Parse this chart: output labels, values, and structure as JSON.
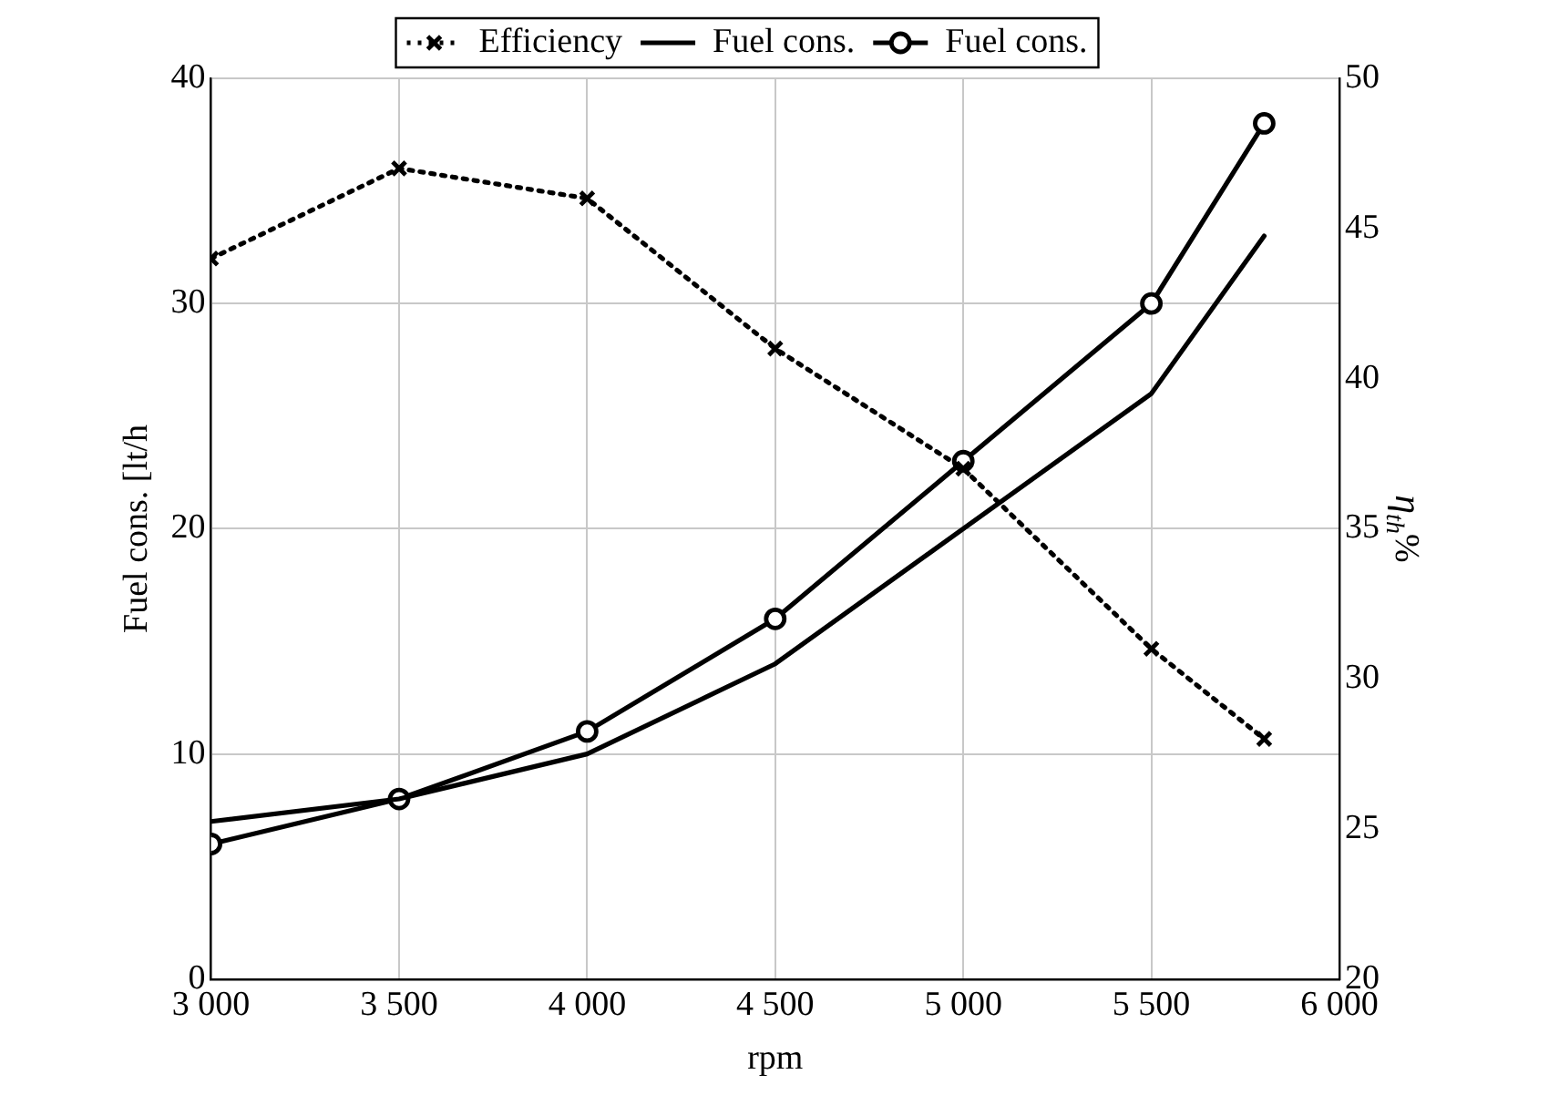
{
  "chart_data": {
    "type": "line",
    "xlabel": "rpm",
    "ylabel": "Fuel cons. [lt/h",
    "y2label": "η$_{th}$%",
    "x": [
      3000,
      3500,
      4000,
      4500,
      5000,
      5500,
      5800
    ],
    "xlim": [
      3000,
      6000
    ],
    "xticks": [
      {
        "value": 3000,
        "label": "3 000"
      },
      {
        "value": 3500,
        "label": "3 500"
      },
      {
        "value": 4000,
        "label": "4 000"
      },
      {
        "value": 4500,
        "label": "4 500"
      },
      {
        "value": 5000,
        "label": "5 000"
      },
      {
        "value": 5500,
        "label": "5 500"
      },
      {
        "value": 6000,
        "label": "6 000"
      }
    ],
    "ylim": [
      0,
      40
    ],
    "yticks": [
      0,
      10,
      20,
      30,
      40
    ],
    "y2lim": [
      20,
      50
    ],
    "y2ticks": [
      20,
      25,
      30,
      35,
      40,
      45,
      50
    ],
    "grid": true,
    "legend": "top",
    "series": [
      {
        "name": "Efficiency",
        "color": "#000000",
        "axis": "y2",
        "marker": "cross",
        "line_style": "dotted",
        "values": [
          44.0,
          47.0,
          46.0,
          41.0,
          37.0,
          31.0,
          28.0
        ]
      },
      {
        "name": "Fuel cons.",
        "color": "#000000",
        "marker": "none",
        "line_style": "solid",
        "values": [
          7,
          8,
          10,
          14,
          20,
          26,
          33
        ]
      },
      {
        "name": "Fuel cons.",
        "color": "#000000",
        "marker": "circle",
        "line_style": "solid",
        "values": [
          6,
          8,
          11,
          16,
          23,
          30,
          38
        ]
      }
    ]
  }
}
